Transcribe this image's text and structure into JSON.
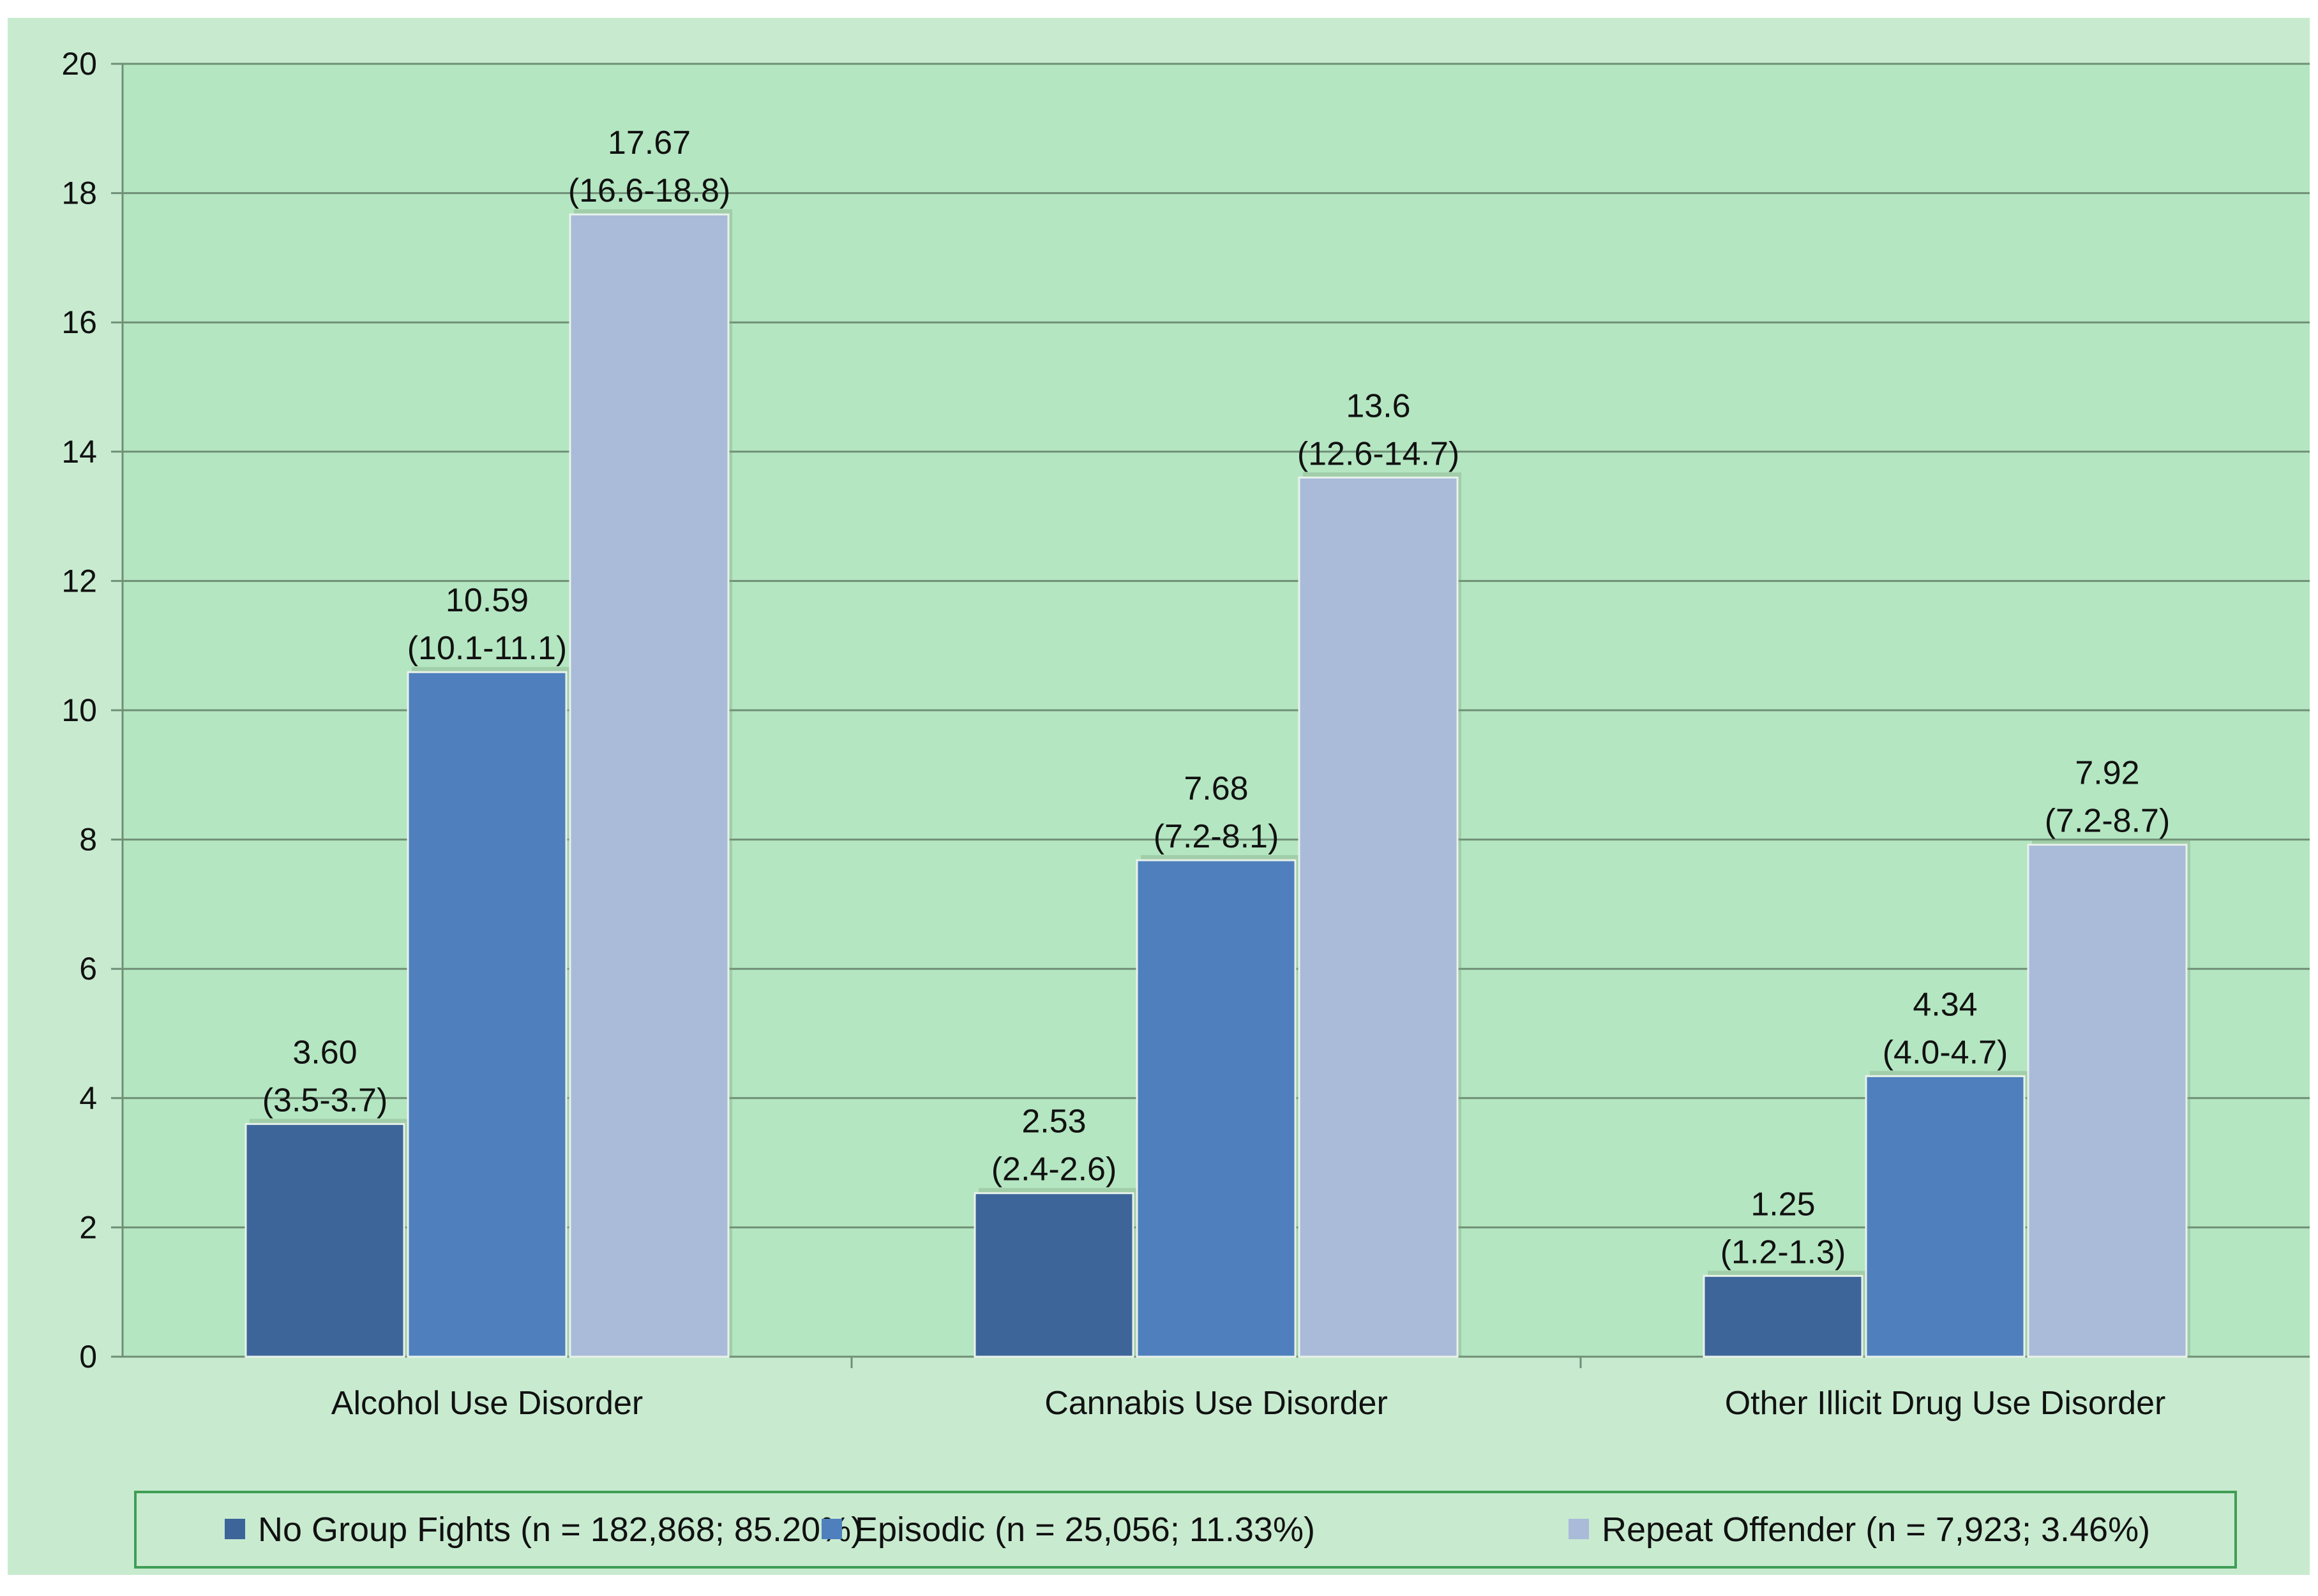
{
  "chart_data": {
    "type": "bar",
    "title": "",
    "xlabel": "",
    "ylabel": "",
    "ylim": [
      0,
      20
    ],
    "yticks": [
      0,
      2,
      4,
      6,
      8,
      10,
      12,
      14,
      16,
      18,
      20
    ],
    "grid": true,
    "legend_position": "bottom",
    "categories": [
      "Alcohol Use Disorder",
      "Cannabis Use Disorder",
      "Other Illicit Drug Use Disorder"
    ],
    "series": [
      {
        "name": "No Group Fights (n = 182,868; 85.20%)",
        "color": "#3d6599",
        "values": [
          3.6,
          2.53,
          1.25
        ],
        "value_labels": [
          "3.60",
          "2.53",
          "1.25"
        ],
        "ci_labels": [
          "(3.5-3.7)",
          "(2.4-2.6)",
          "(1.2-1.3)"
        ]
      },
      {
        "name": "Episodic (n = 25,056; 11.33%)",
        "color": "#4f80bd",
        "values": [
          10.59,
          7.68,
          4.34
        ],
        "value_labels": [
          "10.59",
          "7.68",
          "4.34"
        ],
        "ci_labels": [
          "(10.1-11.1)",
          "(7.2-8.1)",
          "(4.0-4.7)"
        ]
      },
      {
        "name": "Repeat Offender (n = 7,923; 3.46%)",
        "color": "#a9bbd9",
        "values": [
          17.67,
          13.6,
          7.92
        ],
        "value_labels": [
          "17.67",
          "13.6",
          "7.92"
        ],
        "ci_labels": [
          "(16.6-18.8)",
          "(12.6-14.7)",
          "(7.2-8.7)"
        ]
      }
    ]
  },
  "colors": {
    "outer_background": "#c8ebd0",
    "plot_background": "#b4e6c1",
    "gridline": "#6f8f76",
    "legend_border": "#3f9e55",
    "legend_background": "#c8ebd0"
  }
}
